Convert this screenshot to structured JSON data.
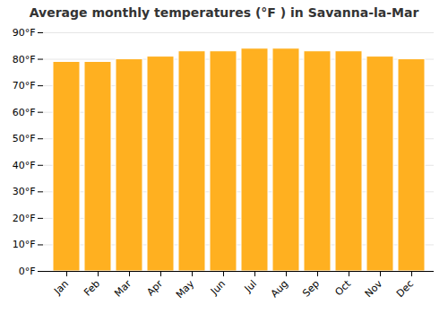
{
  "chart_data": {
    "type": "bar",
    "title": "Average monthly temperatures (°F ) in Savanna-la-Mar",
    "categories": [
      "Jan",
      "Feb",
      "Mar",
      "Apr",
      "May",
      "Jun",
      "Jul",
      "Aug",
      "Sep",
      "Oct",
      "Nov",
      "Dec"
    ],
    "values": [
      79,
      79,
      80,
      81,
      83,
      83,
      84,
      84,
      83,
      83,
      81,
      80
    ],
    "color": "#FFB020",
    "ylim": [
      0,
      90
    ],
    "yticks": [
      {
        "value": 0,
        "label": "0°F"
      },
      {
        "value": 10,
        "label": "10°F"
      },
      {
        "value": 20,
        "label": "20°F"
      },
      {
        "value": 30,
        "label": "30°F"
      },
      {
        "value": 40,
        "label": "40°F"
      },
      {
        "value": 50,
        "label": "50°F"
      },
      {
        "value": 60,
        "label": "60°F"
      },
      {
        "value": 70,
        "label": "70°F"
      },
      {
        "value": 80,
        "label": "80°F"
      },
      {
        "value": 90,
        "label": "90°F"
      }
    ],
    "grid": true
  }
}
